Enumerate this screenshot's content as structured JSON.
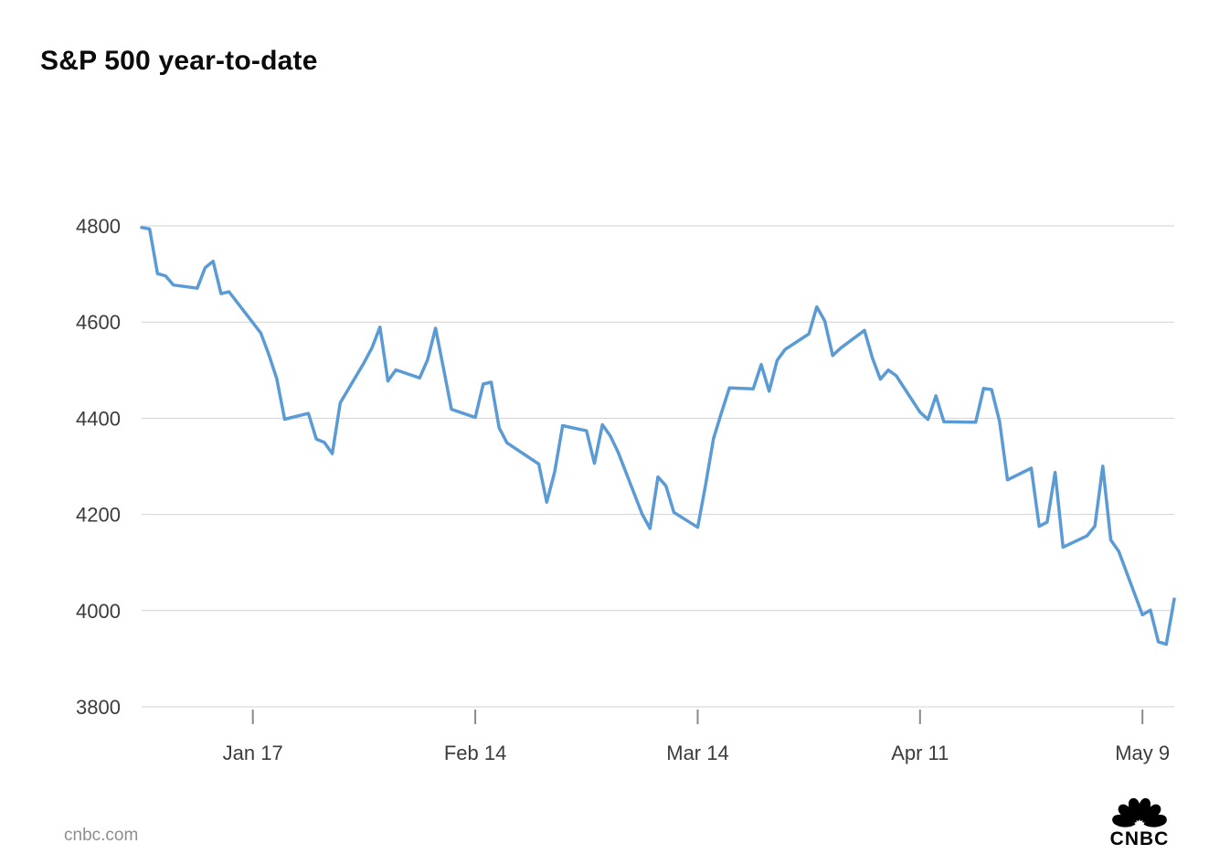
{
  "page": {
    "title": "S&P 500 year-to-date",
    "source": "cnbc.com",
    "logo_text": "CNBC"
  },
  "chart_data": {
    "type": "line",
    "title": "S&P 500 year-to-date",
    "xlabel": "",
    "ylabel": "",
    "ylim": [
      3800,
      4800
    ],
    "grid": true,
    "legend": false,
    "line_color": "#5b9bd5",
    "grid_color": "#d2d2d2",
    "y_ticks": [
      4800,
      4600,
      4400,
      4200,
      4000,
      3800
    ],
    "x_ticks": [
      {
        "date": "2022-01-17",
        "label": "Jan 17"
      },
      {
        "date": "2022-02-14",
        "label": "Feb 14"
      },
      {
        "date": "2022-03-14",
        "label": "Mar 14"
      },
      {
        "date": "2022-04-11",
        "label": "Apr 11"
      },
      {
        "date": "2022-05-09",
        "label": "May 9"
      }
    ],
    "dates": [
      "2022-01-03",
      "2022-01-04",
      "2022-01-05",
      "2022-01-06",
      "2022-01-07",
      "2022-01-10",
      "2022-01-11",
      "2022-01-12",
      "2022-01-13",
      "2022-01-14",
      "2022-01-18",
      "2022-01-19",
      "2022-01-20",
      "2022-01-21",
      "2022-01-24",
      "2022-01-25",
      "2022-01-26",
      "2022-01-27",
      "2022-01-28",
      "2022-01-31",
      "2022-02-01",
      "2022-02-02",
      "2022-02-03",
      "2022-02-04",
      "2022-02-07",
      "2022-02-08",
      "2022-02-09",
      "2022-02-10",
      "2022-02-11",
      "2022-02-14",
      "2022-02-15",
      "2022-02-16",
      "2022-02-17",
      "2022-02-18",
      "2022-02-22",
      "2022-02-23",
      "2022-02-24",
      "2022-02-25",
      "2022-02-28",
      "2022-03-01",
      "2022-03-02",
      "2022-03-03",
      "2022-03-04",
      "2022-03-07",
      "2022-03-08",
      "2022-03-09",
      "2022-03-10",
      "2022-03-11",
      "2022-03-14",
      "2022-03-15",
      "2022-03-16",
      "2022-03-17",
      "2022-03-18",
      "2022-03-21",
      "2022-03-22",
      "2022-03-23",
      "2022-03-24",
      "2022-03-25",
      "2022-03-28",
      "2022-03-29",
      "2022-03-30",
      "2022-03-31",
      "2022-04-01",
      "2022-04-04",
      "2022-04-05",
      "2022-04-06",
      "2022-04-07",
      "2022-04-08",
      "2022-04-11",
      "2022-04-12",
      "2022-04-13",
      "2022-04-14",
      "2022-04-18",
      "2022-04-19",
      "2022-04-20",
      "2022-04-21",
      "2022-04-22",
      "2022-04-25",
      "2022-04-26",
      "2022-04-27",
      "2022-04-28",
      "2022-04-29",
      "2022-05-02",
      "2022-05-03",
      "2022-05-04",
      "2022-05-05",
      "2022-05-06",
      "2022-05-09",
      "2022-05-10",
      "2022-05-11",
      "2022-05-12",
      "2022-05-13"
    ],
    "values": [
      4796.56,
      4793.54,
      4700.58,
      4696.05,
      4677.03,
      4670.29,
      4713.07,
      4726.35,
      4659.03,
      4662.85,
      4577.11,
      4532.76,
      4482.73,
      4397.94,
      4410.13,
      4356.45,
      4349.93,
      4326.51,
      4431.85,
      4515.55,
      4546.54,
      4589.38,
      4477.44,
      4500.53,
      4483.87,
      4521.54,
      4587.18,
      4504.08,
      4418.64,
      4401.67,
      4471.07,
      4475.01,
      4380.26,
      4348.87,
      4304.76,
      4225.5,
      4288.7,
      4384.65,
      4373.94,
      4306.26,
      4386.54,
      4363.49,
      4328.87,
      4201.09,
      4170.7,
      4277.88,
      4259.52,
      4204.31,
      4173.11,
      4262.45,
      4357.86,
      4411.67,
      4463.12,
      4461.18,
      4511.61,
      4456.24,
      4520.16,
      4543.06,
      4575.52,
      4631.6,
      4602.45,
      4530.41,
      4545.86,
      4582.64,
      4525.12,
      4481.15,
      4500.21,
      4488.28,
      4412.53,
      4397.45,
      4446.59,
      4392.59,
      4391.69,
      4462.21,
      4459.45,
      4393.66,
      4271.78,
      4296.12,
      4175.2,
      4183.96,
      4287.5,
      4131.93,
      4155.38,
      4175.48,
      4300.17,
      4146.87,
      4123.34,
      3991.24,
      4001.05,
      3935.18,
      3930.08,
      4023.89
    ]
  }
}
